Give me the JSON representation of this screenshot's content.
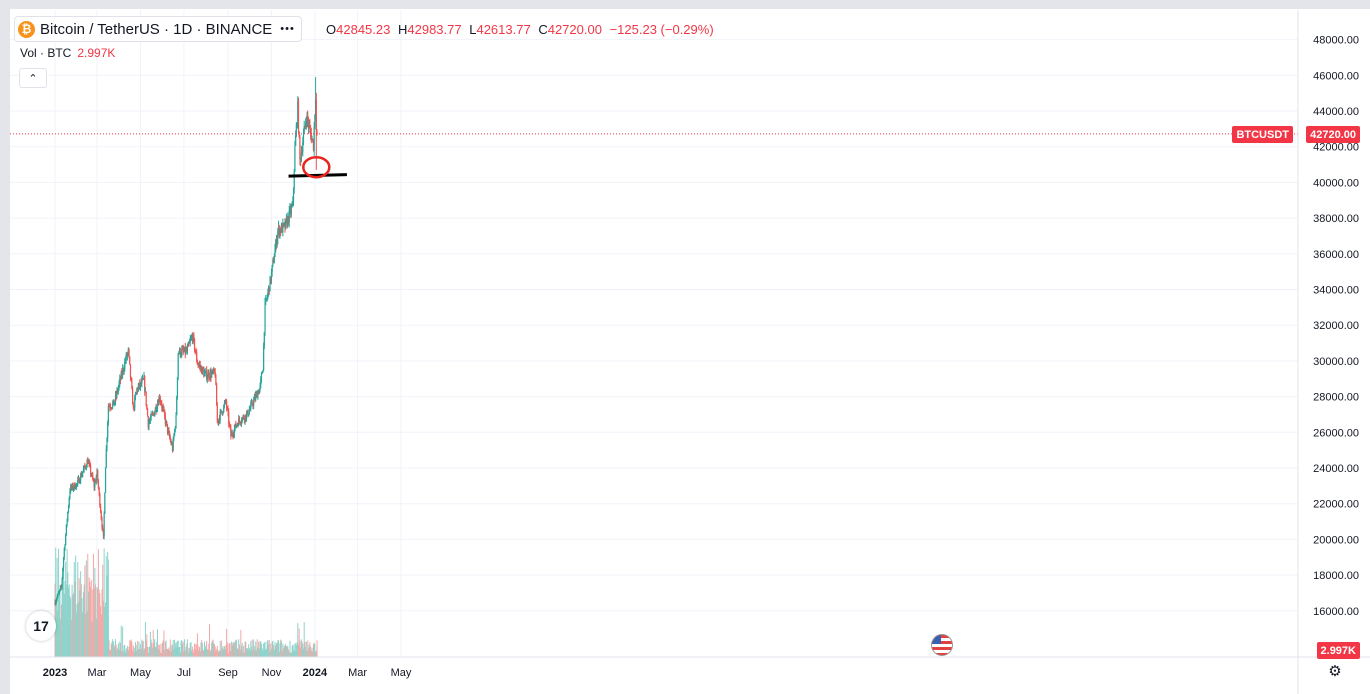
{
  "legend": {
    "symbol_icon": "bitcoin-coin-icon",
    "symbol_glyph": "₿",
    "title": "Bitcoin / TetherUS · 1D · BINANCE",
    "more_icon": "•••"
  },
  "ohlc": {
    "o_label": "O",
    "o": "42845.23",
    "h_label": "H",
    "h": "42983.77",
    "l_label": "L",
    "l": "42613.77",
    "c_label": "C",
    "c": "42720.00",
    "change": "−125.23 (−0.29%)"
  },
  "volume": {
    "label": "Vol · BTC",
    "value": "2.997K"
  },
  "collapse_icon": "chevron-up-icon",
  "tv_logo_text": "17",
  "price_axis": {
    "labels": [
      "48000.00",
      "46000.00",
      "44000.00",
      "42000.00",
      "40000.00",
      "38000.00",
      "36000.00",
      "34000.00",
      "32000.00",
      "30000.00",
      "28000.00",
      "26000.00",
      "24000.00",
      "22000.00",
      "20000.00",
      "18000.00",
      "16000.00"
    ]
  },
  "time_axis": {
    "labels": [
      "2023",
      "Mar",
      "May",
      "Jul",
      "Sep",
      "Nov",
      "2024",
      "Mar",
      "May"
    ],
    "bold": [
      "2023",
      "2024"
    ]
  },
  "last_price": {
    "symbol": "BTCUSDT",
    "value": "42720.00"
  },
  "volume_tag": "2.997K",
  "colors": {
    "up": "#26a69a",
    "down": "#ef5350",
    "up_vol": "#8ed3cc",
    "down_vol": "#f4a9a7",
    "price_tag": "#f23645"
  },
  "chart_data": {
    "type": "candlestick",
    "title": "Bitcoin / TetherUS · 1D · BINANCE",
    "ylim": [
      15000,
      49000
    ],
    "grid": true,
    "x": [
      "2023-01",
      "2023-02",
      "2023-03",
      "2023-04",
      "2023-05",
      "2023-06",
      "2023-07",
      "2023-08",
      "2023-09",
      "2023-10",
      "2023-11",
      "2023-12",
      "2024-01"
    ],
    "close_anchors": [
      [
        "2023-01-01",
        16500
      ],
      [
        "2023-01-10",
        17300
      ],
      [
        "2023-01-13",
        19000
      ],
      [
        "2023-01-22",
        22800
      ],
      [
        "2023-02-01",
        23100
      ],
      [
        "2023-02-16",
        24400
      ],
      [
        "2023-02-25",
        23000
      ],
      [
        "2023-03-01",
        23700
      ],
      [
        "2023-03-10",
        20000
      ],
      [
        "2023-03-13",
        24200
      ],
      [
        "2023-03-17",
        27500
      ],
      [
        "2023-03-25",
        27600
      ],
      [
        "2023-04-11",
        30200
      ],
      [
        "2023-04-14",
        30500
      ],
      [
        "2023-04-21",
        27300
      ],
      [
        "2023-04-26",
        28400
      ],
      [
        "2023-05-06",
        28900
      ],
      [
        "2023-05-12",
        26500
      ],
      [
        "2023-05-20",
        27100
      ],
      [
        "2023-05-28",
        28000
      ],
      [
        "2023-06-10",
        25800
      ],
      [
        "2023-06-15",
        25100
      ],
      [
        "2023-06-20",
        26800
      ],
      [
        "2023-06-23",
        30500
      ],
      [
        "2023-07-05",
        30500
      ],
      [
        "2023-07-13",
        31400
      ],
      [
        "2023-07-20",
        29900
      ],
      [
        "2023-07-31",
        29200
      ],
      [
        "2023-08-14",
        29300
      ],
      [
        "2023-08-17",
        26600
      ],
      [
        "2023-08-29",
        27700
      ],
      [
        "2023-09-05",
        25800
      ],
      [
        "2023-09-15",
        26600
      ],
      [
        "2023-09-28",
        27000
      ],
      [
        "2023-10-16",
        28500
      ],
      [
        "2023-10-20",
        29700
      ],
      [
        "2023-10-23",
        33000
      ],
      [
        "2023-10-31",
        34600
      ],
      [
        "2023-11-10",
        37300
      ],
      [
        "2023-11-20",
        37500
      ],
      [
        "2023-12-01",
        38700
      ],
      [
        "2023-12-04",
        41900
      ],
      [
        "2023-12-08",
        44200
      ],
      [
        "2023-12-11",
        41200
      ],
      [
        "2023-12-20",
        43700
      ],
      [
        "2023-12-30",
        42100
      ],
      [
        "2024-01-02",
        45000
      ],
      [
        "2024-01-03",
        42900
      ],
      [
        "2024-01-04",
        42720
      ]
    ],
    "last": {
      "open": 42845.23,
      "high": 42983.77,
      "low": 42613.77,
      "close": 42720.0
    },
    "volume_series": "Vol · BTC",
    "annotations": [
      {
        "type": "horizontal-line",
        "price": 40350,
        "from": "2023-11-25",
        "to": "2024-02-15"
      },
      {
        "type": "circle",
        "date": "2024-01-03",
        "price": 40850
      }
    ]
  }
}
